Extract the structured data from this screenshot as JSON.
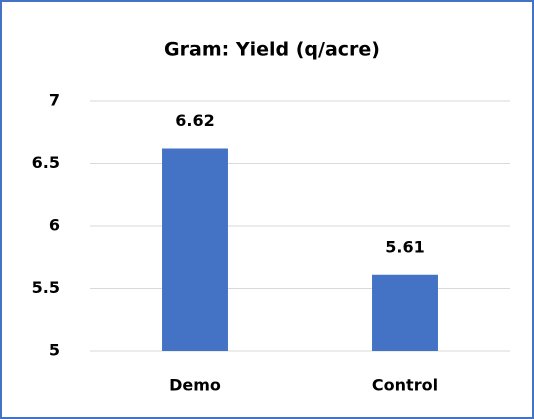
{
  "chart_data": {
    "type": "bar",
    "title": "Gram: Yield (q/acre)",
    "categories": [
      "Demo",
      "Control"
    ],
    "values": [
      6.62,
      5.61
    ],
    "color": "#4472c4",
    "ylim": [
      5,
      7
    ],
    "yticks": [
      5,
      5.5,
      6,
      6.5,
      7
    ],
    "grid": true
  }
}
